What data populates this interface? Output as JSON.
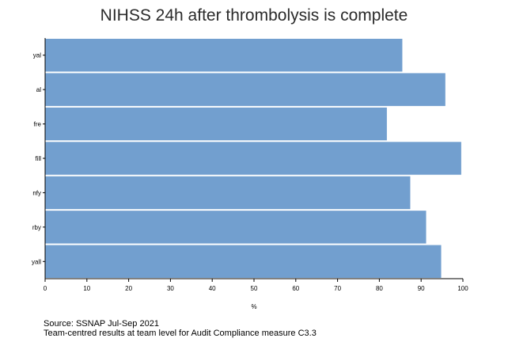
{
  "chart_data": {
    "type": "bar",
    "orientation": "horizontal",
    "title": "NIHSS 24h after thrombolysis is complete",
    "categories": [
      "yal",
      "al",
      "fre",
      "fill",
      "nfy",
      "rby",
      "yall"
    ],
    "values": [
      85.5,
      95.8,
      81.8,
      99.6,
      87.4,
      91.2,
      94.8
    ],
    "xlabel": "%",
    "ylabel": "",
    "xlim": [
      0,
      100
    ],
    "xticks": [
      0,
      10,
      20,
      30,
      40,
      50,
      60,
      70,
      80,
      90,
      100
    ],
    "grid": false,
    "bar_color": "#729fcf"
  },
  "footer": {
    "source": "Source: SSNAP Jul-Sep 2021",
    "note": "Team-centred results at team level for Audit Compliance measure C3.3"
  }
}
